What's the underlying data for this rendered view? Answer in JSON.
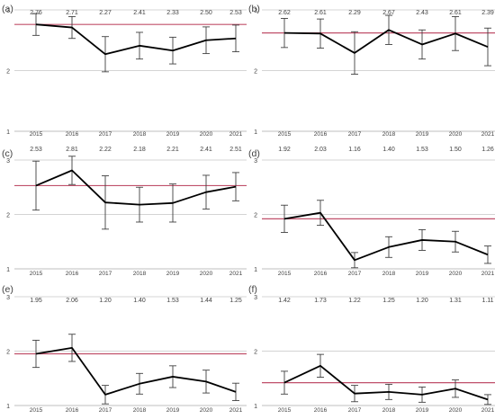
{
  "chart_data": [
    {
      "panel_label": "(a)",
      "type": "line",
      "categories": [
        "2015",
        "2016",
        "2017",
        "2018",
        "2019",
        "2020",
        "2021"
      ],
      "values": [
        2.76,
        2.71,
        2.27,
        2.41,
        2.33,
        2.5,
        2.53
      ],
      "value_labels": [
        "2.76",
        "2.71",
        "2.27",
        "2.41",
        "2.33",
        "2.50",
        "2.53"
      ],
      "error_low": [
        2.58,
        2.53,
        1.98,
        2.19,
        2.11,
        2.28,
        2.31
      ],
      "error_high": [
        2.94,
        2.89,
        2.56,
        2.63,
        2.55,
        2.72,
        2.75
      ],
      "reference_line": 2.76,
      "ylim": [
        1,
        3
      ],
      "yticks": [
        "1",
        "2",
        "3"
      ],
      "grid": "horizontal"
    },
    {
      "panel_label": "(b)",
      "type": "line",
      "categories": [
        "2015",
        "2016",
        "2017",
        "2018",
        "2019",
        "2020",
        "2021"
      ],
      "values": [
        2.62,
        2.61,
        2.29,
        2.67,
        2.43,
        2.61,
        2.39
      ],
      "value_labels": [
        "2.62",
        "2.61",
        "2.29",
        "2.67",
        "2.43",
        "2.61",
        "2.39"
      ],
      "error_low": [
        2.38,
        2.37,
        1.94,
        2.43,
        2.19,
        2.33,
        2.08
      ],
      "error_high": [
        2.86,
        2.85,
        2.64,
        2.91,
        2.67,
        2.89,
        2.7
      ],
      "reference_line": 2.62,
      "ylim": [
        1,
        3
      ],
      "yticks": [
        "1",
        "2",
        "3"
      ],
      "grid": "horizontal"
    },
    {
      "panel_label": "(c)",
      "type": "line",
      "categories": [
        "2015",
        "2016",
        "2017",
        "2018",
        "2019",
        "2020",
        "2021"
      ],
      "values": [
        2.53,
        2.81,
        2.22,
        2.18,
        2.21,
        2.41,
        2.51
      ],
      "value_labels": [
        "2.53",
        "2.81",
        "2.22",
        "2.18",
        "2.21",
        "2.41",
        "2.51"
      ],
      "error_low": [
        2.08,
        2.55,
        1.73,
        1.86,
        1.86,
        2.1,
        2.25
      ],
      "error_high": [
        2.98,
        3.07,
        2.71,
        2.5,
        2.56,
        2.72,
        2.77
      ],
      "reference_line": 2.53,
      "ylim": [
        1,
        3
      ],
      "yticks": [
        "1",
        "2",
        "3"
      ],
      "grid": "horizontal"
    },
    {
      "panel_label": "(d)",
      "type": "line",
      "categories": [
        "2015",
        "2016",
        "2017",
        "2018",
        "2019",
        "2020",
        "2021"
      ],
      "values": [
        1.92,
        2.03,
        1.16,
        1.4,
        1.53,
        1.5,
        1.26
      ],
      "value_labels": [
        "1.92",
        "2.03",
        "1.16",
        "1.40",
        "1.53",
        "1.50",
        "1.26"
      ],
      "error_low": [
        1.67,
        1.8,
        1.02,
        1.21,
        1.34,
        1.31,
        1.1
      ],
      "error_high": [
        2.17,
        2.26,
        1.3,
        1.59,
        1.72,
        1.69,
        1.42
      ],
      "reference_line": 1.92,
      "ylim": [
        1,
        3
      ],
      "yticks": [
        "1",
        "2",
        "3"
      ],
      "grid": "horizontal"
    },
    {
      "panel_label": "(e)",
      "type": "line",
      "categories": [
        "2015",
        "2016",
        "2017",
        "2018",
        "2019",
        "2020",
        "2021"
      ],
      "values": [
        1.95,
        2.06,
        1.2,
        1.4,
        1.53,
        1.44,
        1.25
      ],
      "value_labels": [
        "1.95",
        "2.06",
        "1.20",
        "1.40",
        "1.53",
        "1.44",
        "1.25"
      ],
      "error_low": [
        1.7,
        1.81,
        1.03,
        1.21,
        1.33,
        1.23,
        1.09
      ],
      "error_high": [
        2.2,
        2.31,
        1.37,
        1.59,
        1.73,
        1.65,
        1.41
      ],
      "reference_line": 1.95,
      "ylim": [
        1,
        3
      ],
      "yticks": [
        "1",
        "2",
        "3"
      ],
      "grid": "horizontal"
    },
    {
      "panel_label": "(f)",
      "type": "line",
      "categories": [
        "2015",
        "2016",
        "2017",
        "2018",
        "2019",
        "2020",
        "2021"
      ],
      "values": [
        1.42,
        1.73,
        1.22,
        1.25,
        1.2,
        1.31,
        1.11
      ],
      "value_labels": [
        "1.42",
        "1.73",
        "1.22",
        "1.25",
        "1.20",
        "1.31",
        "1.11"
      ],
      "error_low": [
        1.21,
        1.52,
        1.07,
        1.11,
        1.06,
        1.15,
        1.02
      ],
      "error_high": [
        1.63,
        1.94,
        1.37,
        1.39,
        1.34,
        1.47,
        1.2
      ],
      "reference_line": 1.42,
      "ylim": [
        1,
        3
      ],
      "yticks": [
        "1",
        "2",
        "3"
      ],
      "grid": "horizontal"
    }
  ],
  "colors": {
    "series_line": "#000000",
    "error_bar": "#404040",
    "reference_line": "#c0506a",
    "grid": "#d4d4d4",
    "axis": "#bfbfbf",
    "text": "#404040"
  }
}
